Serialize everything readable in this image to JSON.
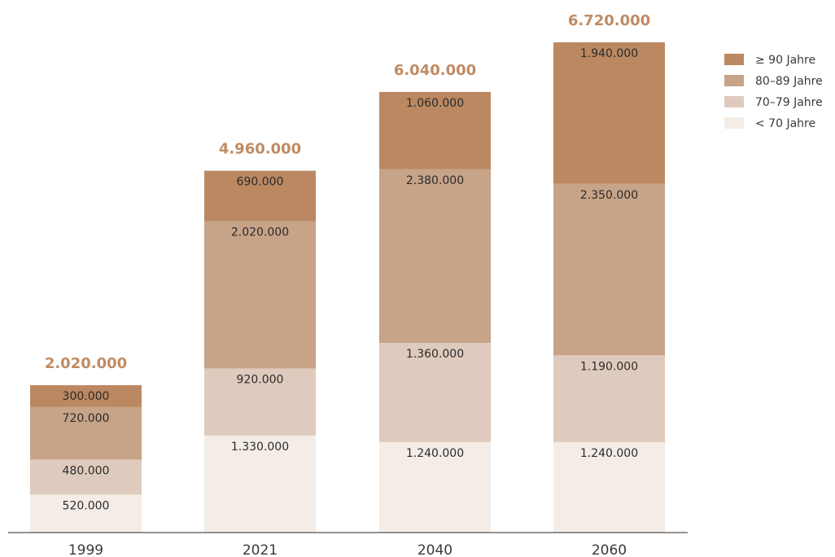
{
  "chart_data": {
    "type": "bar",
    "stacked": true,
    "categories": [
      "1999",
      "2021",
      "2040",
      "2060"
    ],
    "series": [
      {
        "name": "< 70 Jahre",
        "color": "#f4ece6",
        "values": [
          520000,
          1330000,
          1240000,
          1240000
        ],
        "labels": [
          "520.000",
          "1.330.000",
          "1.240.000",
          "1.240.000"
        ]
      },
      {
        "name": "70–79 Jahre",
        "color": "#dfcbbd",
        "values": [
          480000,
          920000,
          1360000,
          1190000
        ],
        "labels": [
          "480.000",
          "920.000",
          "1.360.000",
          "1.190.000"
        ]
      },
      {
        "name": "80–89 Jahre",
        "color": "#c7a388",
        "values": [
          720000,
          2020000,
          2380000,
          2350000
        ],
        "labels": [
          "720.000",
          "2.020.000",
          "2.380.000",
          "2.350.000"
        ]
      },
      {
        "name": "≥ 90 Jahre",
        "color": "#bb8861",
        "values": [
          300000,
          690000,
          1060000,
          1940000
        ],
        "labels": [
          "300.000",
          "690.000",
          "1.060.000",
          "1.940.000"
        ]
      }
    ],
    "totals": [
      2020000,
      4960000,
      6040000,
      6720000
    ],
    "total_labels": [
      "2.020.000",
      "4.960.000",
      "6.040.000",
      "6.720.000"
    ],
    "total_color": "#c08b62",
    "legend_position": "top-right",
    "grid": false,
    "ylim": [
      0,
      6720000
    ],
    "title": "",
    "xlabel": "",
    "ylabel": ""
  }
}
